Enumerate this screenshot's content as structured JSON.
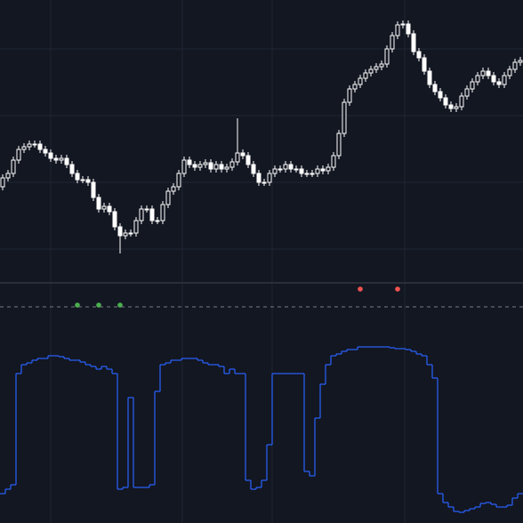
{
  "chart_data": [
    {
      "type": "candlestick",
      "ylim": [
        10,
        320
      ],
      "yticks": [
        40,
        115,
        190,
        265
      ],
      "grid": true,
      "up_color": "#ffffff",
      "down_color": "#ffffff",
      "open": [
        110,
        120,
        125,
        140,
        152,
        155,
        158,
        158,
        152,
        148,
        142,
        140,
        142,
        135,
        125,
        118,
        118,
        115,
        98,
        85,
        88,
        82,
        65,
        55,
        58,
        58,
        72,
        85,
        85,
        72,
        72,
        90,
        105,
        110,
        125,
        140,
        135,
        132,
        135,
        137,
        130,
        135,
        130,
        132,
        138,
        148,
        145,
        135,
        125,
        115,
        115,
        125,
        130,
        130,
        135,
        130,
        130,
        125,
        125,
        125,
        130,
        128,
        132,
        145,
        170,
        205,
        220,
        225,
        232,
        238,
        242,
        245,
        248,
        265,
        280,
        292,
        293,
        282,
        262,
        255,
        240,
        225,
        217,
        210,
        202,
        198,
        200,
        212,
        220,
        228,
        235,
        240,
        235,
        228,
        225,
        235,
        242,
        250
      ],
      "high": [
        124,
        129,
        144,
        156,
        159,
        162,
        162,
        162,
        156,
        152,
        146,
        146,
        146,
        139,
        129,
        122,
        122,
        119,
        102,
        92,
        92,
        86,
        69,
        62,
        62,
        76,
        89,
        89,
        89,
        76,
        94,
        109,
        114,
        129,
        144,
        144,
        139,
        139,
        141,
        141,
        139,
        139,
        136,
        142,
        187,
        152,
        149,
        139,
        129,
        119,
        129,
        134,
        134,
        139,
        139,
        134,
        134,
        129,
        129,
        134,
        134,
        136,
        149,
        174,
        209,
        224,
        229,
        236,
        242,
        246,
        249,
        252,
        269,
        284,
        296,
        297,
        297,
        286,
        266,
        259,
        244,
        229,
        221,
        214,
        206,
        204,
        216,
        224,
        232,
        239,
        244,
        244,
        239,
        232,
        239,
        246,
        254,
        256
      ],
      "low": [
        106,
        116,
        121,
        136,
        148,
        151,
        154,
        148,
        144,
        138,
        136,
        136,
        131,
        121,
        114,
        114,
        111,
        94,
        81,
        81,
        78,
        61,
        35,
        51,
        54,
        54,
        68,
        81,
        68,
        68,
        68,
        86,
        101,
        106,
        121,
        131,
        128,
        128,
        131,
        126,
        126,
        126,
        126,
        128,
        134,
        141,
        131,
        121,
        111,
        111,
        111,
        121,
        126,
        126,
        126,
        126,
        121,
        121,
        121,
        121,
        124,
        124,
        128,
        141,
        166,
        201,
        216,
        221,
        228,
        234,
        238,
        241,
        244,
        261,
        276,
        288,
        278,
        258,
        251,
        236,
        221,
        213,
        206,
        198,
        194,
        194,
        196,
        208,
        216,
        224,
        231,
        231,
        224,
        221,
        221,
        231,
        238,
        246
      ],
      "close": [
        120,
        125,
        140,
        152,
        155,
        158,
        158,
        152,
        148,
        142,
        140,
        142,
        135,
        125,
        118,
        118,
        115,
        98,
        85,
        88,
        82,
        65,
        55,
        58,
        58,
        72,
        85,
        85,
        72,
        72,
        90,
        105,
        110,
        125,
        140,
        135,
        132,
        135,
        137,
        130,
        135,
        130,
        132,
        138,
        148,
        145,
        135,
        125,
        115,
        115,
        125,
        130,
        130,
        135,
        130,
        130,
        125,
        125,
        125,
        130,
        128,
        132,
        145,
        170,
        205,
        220,
        225,
        232,
        238,
        242,
        245,
        248,
        265,
        280,
        292,
        293,
        282,
        262,
        255,
        240,
        225,
        217,
        210,
        202,
        198,
        200,
        212,
        220,
        228,
        235,
        240,
        235,
        228,
        225,
        235,
        242,
        250,
        252
      ],
      "buy_signals": [
        14,
        18,
        22
      ],
      "buy_color": "#4caf50",
      "sell_signals": [
        67,
        74
      ],
      "sell_color": "#f05350"
    },
    {
      "type": "step",
      "ylim": [
        0,
        230
      ],
      "color": "#2962ff",
      "values": [
        25,
        30,
        35,
        160,
        170,
        172,
        175,
        177,
        177,
        180,
        180,
        179,
        177,
        175,
        175,
        173,
        170,
        168,
        165,
        168,
        165,
        160,
        30,
        32,
        133,
        32,
        32,
        32,
        35,
        140,
        170,
        172,
        175,
        175,
        177,
        177,
        177,
        175,
        172,
        170,
        170,
        168,
        160,
        165,
        160,
        160,
        40,
        30,
        32,
        40,
        80,
        160,
        160,
        160,
        160,
        160,
        160,
        50,
        45,
        110,
        148,
        170,
        180,
        182,
        185,
        187,
        187,
        190,
        190,
        190,
        190,
        190,
        190,
        189,
        188,
        188,
        187,
        185,
        182,
        180,
        170,
        155,
        25,
        15,
        10,
        5,
        4,
        6,
        8,
        10,
        14,
        15,
        13,
        10,
        10,
        12,
        20,
        25
      ]
    }
  ]
}
